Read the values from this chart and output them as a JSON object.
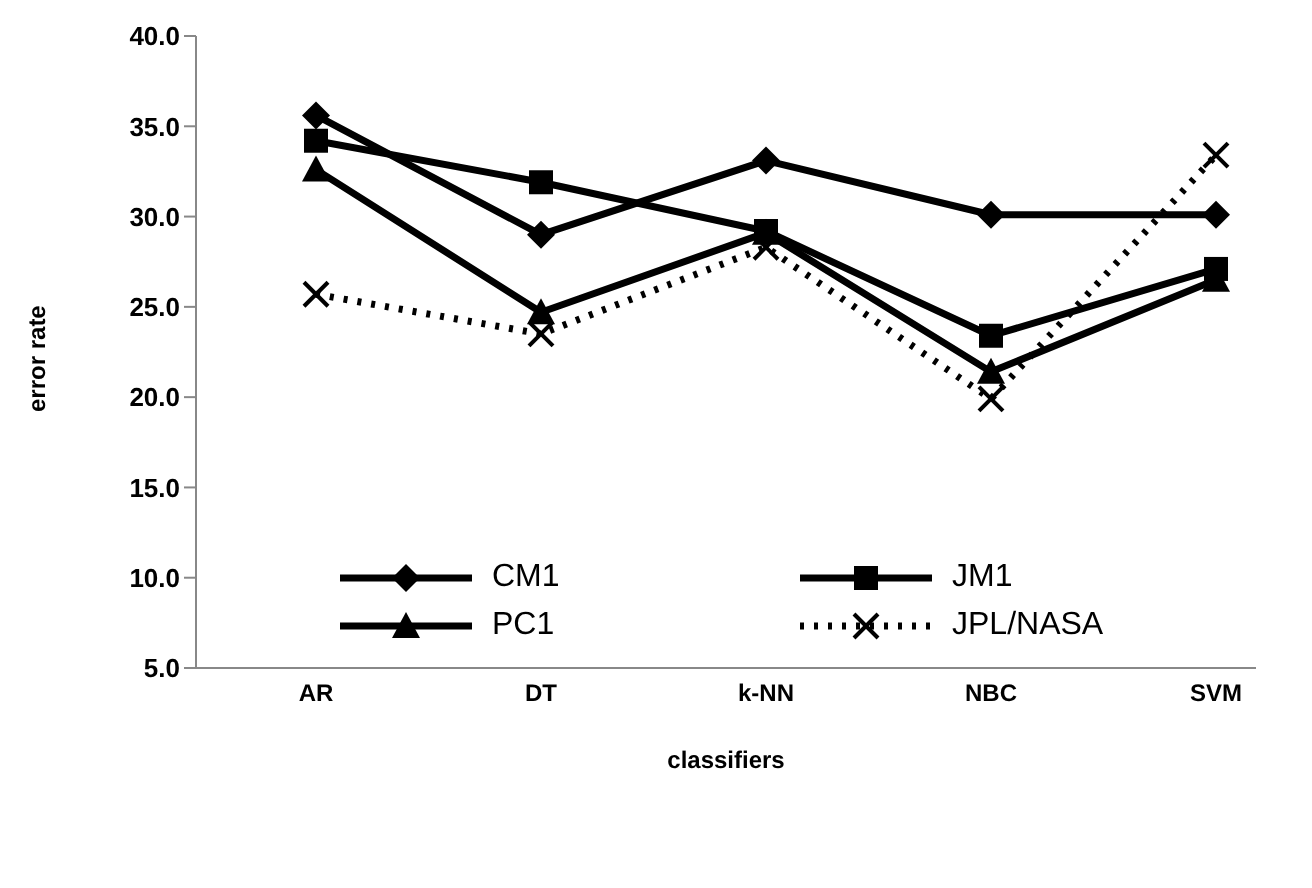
{
  "chart_data": {
    "type": "line",
    "xlabel": "classifiers",
    "ylabel": "error rate",
    "categories": [
      "AR",
      "DT",
      "k-NN",
      "NBC",
      "SVM"
    ],
    "series": [
      {
        "name": "CM1",
        "color": "#000000",
        "marker": "diamond",
        "line_style": "solid",
        "values": [
          35.6,
          29.0,
          33.1,
          30.1,
          30.1
        ]
      },
      {
        "name": "JM1",
        "color": "#000000",
        "marker": "square",
        "line_style": "solid",
        "values": [
          34.2,
          31.9,
          29.2,
          23.4,
          27.1
        ]
      },
      {
        "name": "PC1",
        "color": "#000000",
        "marker": "triangle",
        "line_style": "solid",
        "values": [
          32.6,
          24.7,
          29.1,
          21.4,
          26.5
        ]
      },
      {
        "name": "JPL/NASA",
        "color": "#000000",
        "marker": "cross",
        "line_style": "dotted",
        "values": [
          25.7,
          23.5,
          28.3,
          19.9,
          33.4
        ]
      }
    ],
    "ylim": [
      5,
      40
    ],
    "yticks": [
      {
        "value": 5,
        "label": "5.0"
      },
      {
        "value": 10,
        "label": "10.0"
      },
      {
        "value": 15,
        "label": "15.0"
      },
      {
        "value": 20,
        "label": "20.0"
      },
      {
        "value": 25,
        "label": "25.0"
      },
      {
        "value": 30,
        "label": "30.0"
      },
      {
        "value": 35,
        "label": "35.0"
      },
      {
        "value": 40,
        "label": "40.0"
      }
    ],
    "grid": false,
    "legend": "bottom"
  }
}
